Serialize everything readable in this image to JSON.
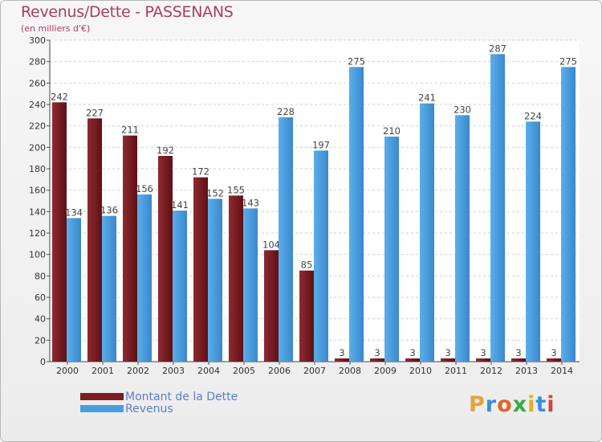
{
  "header": {
    "title": "Revenus/Dette - PASSENANS",
    "subtitle": "(en milliers d'€)"
  },
  "chart_data": {
    "type": "bar",
    "categories": [
      "2000",
      "2001",
      "2002",
      "2003",
      "2004",
      "2005",
      "2006",
      "2007",
      "2008",
      "2009",
      "2010",
      "2011",
      "2012",
      "2013",
      "2014"
    ],
    "series": [
      {
        "name": "Montant de la Dette",
        "color": "#7b1d22",
        "values": [
          242,
          227,
          211,
          192,
          172,
          155,
          104,
          85,
          3,
          3,
          3,
          3,
          3,
          3,
          3
        ]
      },
      {
        "name": "Revenus",
        "color": "#4a9ee0",
        "values": [
          134,
          136,
          156,
          141,
          152,
          143,
          228,
          197,
          275,
          210,
          241,
          230,
          287,
          224,
          275
        ]
      }
    ],
    "ylim": [
      0,
      300
    ],
    "yticks": [
      0,
      20,
      40,
      60,
      80,
      100,
      120,
      140,
      160,
      180,
      200,
      220,
      240,
      260,
      280,
      300
    ],
    "grid": true,
    "legend_position": "bottom-left"
  },
  "legend": {
    "items": [
      {
        "label": "Montant de la Dette",
        "color": "#7b1d22"
      },
      {
        "label": "Revenus",
        "color": "#4a9ee0"
      }
    ]
  },
  "logo": {
    "letters": [
      "P",
      "r",
      "o",
      "x",
      "i",
      "t",
      "i"
    ],
    "colors": [
      "#e8a13a",
      "#3a8fd8",
      "#e0642a",
      "#3aa84a",
      "#e0b020",
      "#3a8fd8",
      "#d84040"
    ]
  }
}
